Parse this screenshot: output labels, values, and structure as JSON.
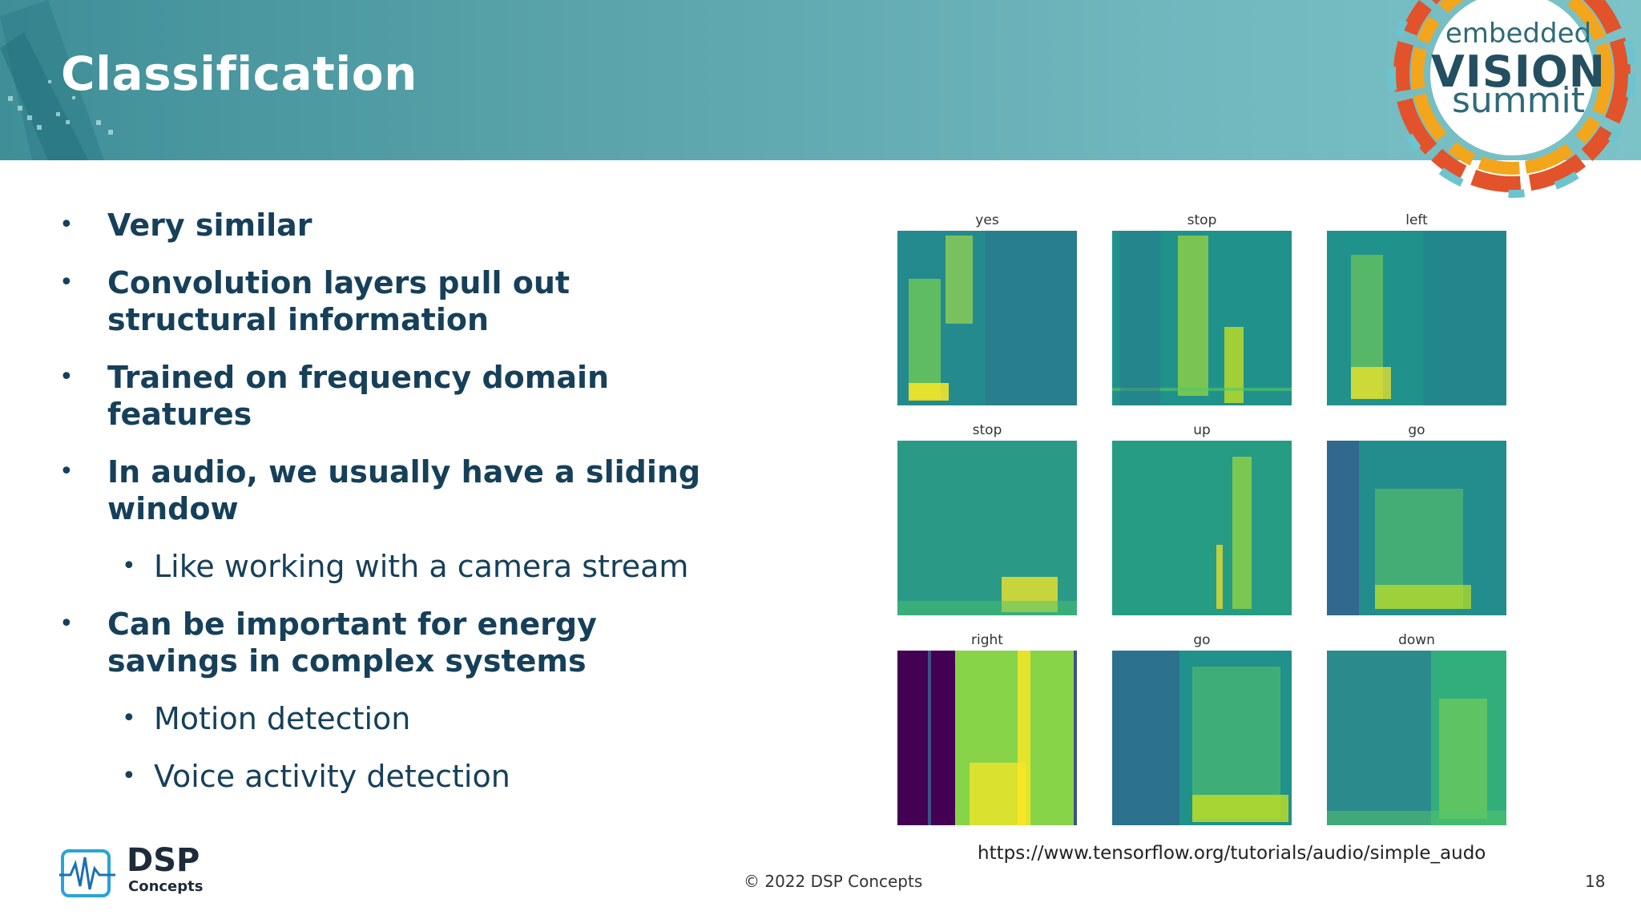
{
  "slide": {
    "title": "Classification",
    "page_number": "18",
    "copyright": "© 2022 DSP Concepts",
    "source_url": "https://www.tensorflow.org/tutorials/audio/simple_audo"
  },
  "summit_logo": {
    "line1": "embedded",
    "line2": "VISION",
    "line3": "summit"
  },
  "company_logo": {
    "name": "DSP",
    "sub": "Concepts",
    "icon": "waveform-icon"
  },
  "bullets": [
    {
      "level": 1,
      "text": "Very similar"
    },
    {
      "level": 1,
      "text": "Convolution layers pull out structural information"
    },
    {
      "level": 1,
      "text": "Trained on frequency domain features"
    },
    {
      "level": 1,
      "text": "In audio, we usually have a sliding window"
    },
    {
      "level": 2,
      "text": "Like working with a camera stream"
    },
    {
      "level": 1,
      "text": "Can be important for energy savings in complex systems"
    },
    {
      "level": 2,
      "text": "Motion detection"
    },
    {
      "level": 2,
      "text": "Voice activity detection"
    }
  ],
  "spectrograms": [
    {
      "label": "yes"
    },
    {
      "label": "stop"
    },
    {
      "label": "left"
    },
    {
      "label": "stop"
    },
    {
      "label": "up"
    },
    {
      "label": "go"
    },
    {
      "label": "right"
    },
    {
      "label": "go"
    },
    {
      "label": "down"
    }
  ],
  "colors": {
    "header": "#5aa3aa",
    "bullet_text": "#16405a",
    "spec_low": "#3b528b",
    "spec_mid": "#21918c",
    "spec_high": "#fde725"
  }
}
